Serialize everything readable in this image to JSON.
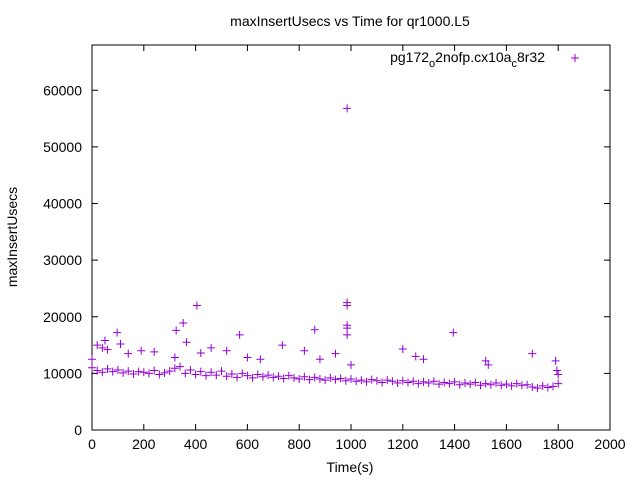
{
  "chart_data": {
    "type": "scatter",
    "title": "maxInsertUsecs vs Time for qr1000.L5",
    "xlabel": "Time(s)",
    "ylabel": "maxInsertUsecs",
    "xlim": [
      0,
      2000
    ],
    "ylim": [
      0,
      68000
    ],
    "xticks": [
      0,
      200,
      400,
      600,
      800,
      1000,
      1200,
      1400,
      1600,
      1800,
      2000
    ],
    "yticks": [
      0,
      10000,
      20000,
      30000,
      40000,
      50000,
      60000
    ],
    "grid": false,
    "legend_position": "top-right",
    "series": [
      {
        "name": "pg172_o2nofp.cx10a_c8r32",
        "legend_main": "pg172",
        "legend_sub1": "o",
        "legend_mid": "2nofp.cx10a",
        "legend_sub2": "c",
        "legend_end": "8r32",
        "color": "#9400d3",
        "marker": "plus",
        "baseline_x_start": 0,
        "baseline_x_step": 20,
        "baseline_y": [
          11000,
          10500,
          10200,
          10800,
          10300,
          10600,
          10100,
          10400,
          9900,
          10300,
          10200,
          10000,
          10500,
          9800,
          10100,
          10400,
          10900,
          11200,
          10000,
          10600,
          9800,
          10300,
          9600,
          10200,
          9700,
          10400,
          9500,
          9900,
          9300,
          10000,
          9600,
          9200,
          9800,
          9400,
          9700,
          9300,
          9500,
          9100,
          9600,
          9200,
          9000,
          9400,
          8900,
          9300,
          9000,
          8800,
          9200,
          8900,
          9100,
          8700,
          9000,
          8600,
          8800,
          8500,
          8900,
          8700,
          8400,
          8800,
          8600,
          8300,
          8700,
          8400,
          8600,
          8200,
          8500,
          8300,
          8600,
          8100,
          8400,
          8200,
          8500,
          8000,
          8300,
          8100,
          8400,
          7900,
          8200,
          8000,
          8300,
          7900,
          8100,
          7800,
          8200,
          7900,
          8000,
          7600,
          7400,
          7800,
          7500,
          7700,
          8200
        ],
        "outliers": [
          [
            0,
            12500
          ],
          [
            20,
            15000
          ],
          [
            40,
            14500
          ],
          [
            50,
            15800
          ],
          [
            60,
            14200
          ],
          [
            97,
            17200
          ],
          [
            110,
            15200
          ],
          [
            140,
            13500
          ],
          [
            190,
            14000
          ],
          [
            240,
            13800
          ],
          [
            320,
            12800
          ],
          [
            325,
            17600
          ],
          [
            352,
            18900
          ],
          [
            365,
            15500
          ],
          [
            405,
            22000
          ],
          [
            420,
            13600
          ],
          [
            460,
            14500
          ],
          [
            520,
            14000
          ],
          [
            570,
            16800
          ],
          [
            600,
            12800
          ],
          [
            650,
            12500
          ],
          [
            735,
            15000
          ],
          [
            820,
            14000
          ],
          [
            860,
            17700
          ],
          [
            880,
            12500
          ],
          [
            940,
            13500
          ],
          [
            985,
            56800
          ],
          [
            985,
            22500
          ],
          [
            985,
            22000
          ],
          [
            985,
            18500
          ],
          [
            985,
            18000
          ],
          [
            985,
            16800
          ],
          [
            1000,
            11500
          ],
          [
            1200,
            14300
          ],
          [
            1250,
            13000
          ],
          [
            1280,
            12500
          ],
          [
            1395,
            17200
          ],
          [
            1520,
            12200
          ],
          [
            1530,
            11500
          ],
          [
            1700,
            13500
          ],
          [
            1790,
            12200
          ],
          [
            1795,
            10500
          ],
          [
            1800,
            9800
          ]
        ]
      }
    ]
  }
}
